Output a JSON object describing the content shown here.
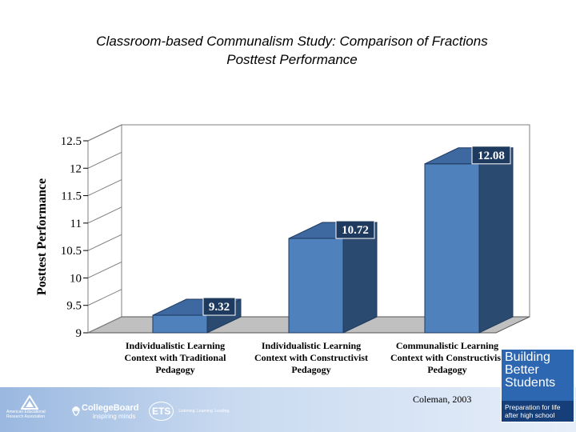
{
  "slide": {
    "title_line1": "Classroom-based Communalism Study: Comparison of Fractions",
    "title_line2": "Posttest Performance",
    "credit": "Coleman, 2003"
  },
  "chart_data": {
    "type": "bar",
    "title": "Classroom-based Communalism Study: Comparison of Fractions Posttest Performance",
    "ylabel": "Posttest Performance",
    "xlabel": "",
    "ylim": [
      9,
      12.5
    ],
    "yticks": [
      9,
      9.5,
      10,
      10.5,
      11,
      11.5,
      12,
      12.5
    ],
    "categories": [
      [
        "Individualistic Learning",
        "Context with Traditional",
        "Pedagogy"
      ],
      [
        "Individualistic Learning",
        "Context with Constructivist",
        "Pedagogy"
      ],
      [
        "Communalistic Learning",
        "Context with Constructivist",
        "Pedagogy"
      ]
    ],
    "values": [
      9.32,
      10.72,
      12.08
    ],
    "data_labels": [
      "9.32",
      "10.72",
      "12.08"
    ],
    "three_d": true,
    "bar_color": "#4f81bd",
    "grid": false,
    "legend": "none"
  },
  "footer": {
    "aera_name": [
      "American Educational",
      "Research Association"
    ],
    "collegeboard_name": "CollegeBoard",
    "collegeboard_tagline": "inspiring minds",
    "ets_name": "ETS",
    "ets_tagline": "Listening. Learning. Leading.",
    "bbs_title": [
      "Building",
      "Better",
      "Students"
    ],
    "bbs_subtitle": [
      "Preparation for life",
      "after high school"
    ]
  }
}
